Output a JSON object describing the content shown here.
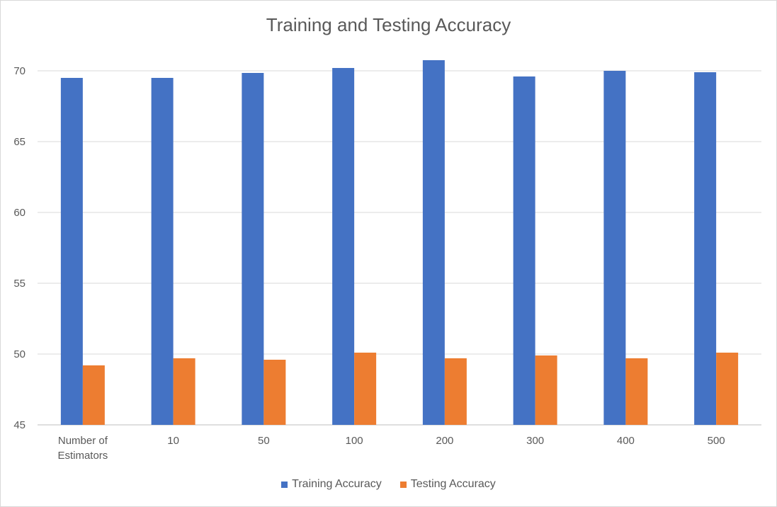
{
  "chart_data": {
    "type": "bar",
    "title": "Training and Testing Accuracy",
    "xlabel": "",
    "ylabel": "",
    "categories": [
      "Number of Estimators",
      "10",
      "50",
      "100",
      "200",
      "300",
      "400",
      "500"
    ],
    "series": [
      {
        "name": "Training Accuracy",
        "color": "#4472C4",
        "values": [
          69.5,
          69.5,
          69.85,
          70.2,
          70.75,
          69.6,
          70.0,
          69.9
        ]
      },
      {
        "name": "Testing Accuracy",
        "color": "#ED7D31",
        "values": [
          49.2,
          49.7,
          49.6,
          50.1,
          49.7,
          49.9,
          49.7,
          50.1
        ]
      }
    ],
    "ylim": [
      45,
      70
    ],
    "yticks": [
      45,
      50,
      55,
      60,
      65,
      70
    ],
    "grid": true,
    "legend_position": "bottom"
  }
}
